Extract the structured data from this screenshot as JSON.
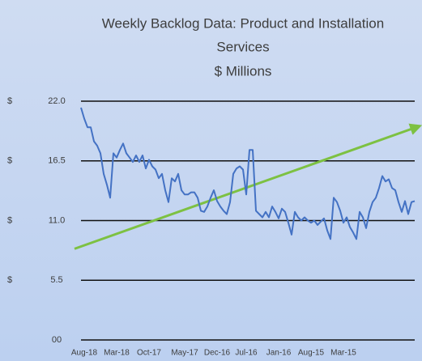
{
  "chart_data": {
    "type": "line",
    "title_lines": [
      "Weekly Backlog Data: Product and Installation",
      "Services",
      "$ Millions"
    ],
    "categories": [
      null,
      "Aug-18",
      null,
      null,
      null,
      null,
      null,
      null,
      null,
      null,
      null,
      "Mar-18",
      null,
      null,
      null,
      null,
      null,
      null,
      null,
      null,
      null,
      "Oct-17",
      null,
      null,
      null,
      null,
      null,
      null,
      null,
      null,
      null,
      null,
      "May-17",
      null,
      null,
      null,
      null,
      null,
      null,
      null,
      null,
      null,
      "Dec-16",
      null,
      null,
      null,
      null,
      null,
      null,
      null,
      null,
      "Jul-16",
      null,
      null,
      null,
      null,
      null,
      null,
      null,
      null,
      null,
      "Jan-16",
      null,
      null,
      null,
      null,
      null,
      null,
      null,
      null,
      null,
      "Aug-15",
      null,
      null,
      null,
      null,
      null,
      null,
      null,
      null,
      null,
      "Mar-15",
      null,
      null,
      null,
      null,
      null,
      null,
      null,
      null,
      null,
      null,
      null,
      null,
      null,
      null,
      null,
      null,
      null,
      null,
      null,
      null,
      null,
      null
    ],
    "series": [
      {
        "color": "#4472c4",
        "values": [
          21.4,
          20.4,
          19.6,
          19.6,
          18.3,
          17.9,
          17.2,
          15.3,
          14.3,
          13.1,
          17.2,
          16.8,
          17.5,
          18.1,
          17.2,
          16.8,
          16.4,
          17.0,
          16.4,
          17.0,
          15.8,
          16.6,
          16.0,
          15.7,
          14.9,
          15.3,
          13.8,
          12.7,
          14.9,
          14.6,
          15.3,
          13.8,
          13.4,
          13.4,
          13.6,
          13.6,
          13.1,
          11.9,
          11.8,
          12.3,
          13.1,
          13.8,
          12.8,
          12.3,
          11.9,
          11.6,
          12.7,
          15.3,
          15.8,
          16.0,
          15.7,
          13.4,
          17.5,
          17.5,
          11.9,
          11.6,
          11.3,
          11.8,
          11.3,
          12.3,
          11.8,
          11.2,
          12.1,
          11.8,
          10.8,
          9.7,
          11.8,
          11.3,
          11.0,
          11.3,
          11.0,
          10.8,
          11.0,
          10.6,
          10.9,
          11.2,
          10.1,
          9.3,
          13.1,
          12.7,
          11.9,
          10.8,
          11.3,
          10.4,
          9.9,
          9.3,
          11.8,
          11.3,
          10.3,
          11.8,
          12.7,
          13.1,
          14.0,
          15.1,
          14.6,
          14.8,
          14.0,
          13.8,
          12.7,
          11.8,
          12.8,
          11.6,
          12.7,
          12.8
        ]
      }
    ],
    "trendline": {
      "color": "#7dc142",
      "values": [
        8.4,
        19.6
      ]
    },
    "ylim": [
      0,
      22
    ],
    "yticks": [
      {
        "value": 0,
        "label": "00"
      },
      5.5,
      {
        "value": 11,
        "label": "11.0"
      },
      16.5,
      {
        "value": 22,
        "label": "22.0"
      }
    ],
    "ytick_prefixes": [
      null,
      "$",
      "$",
      "$",
      "$"
    ],
    "grid": true
  }
}
